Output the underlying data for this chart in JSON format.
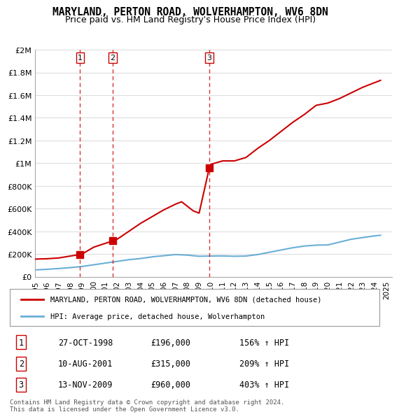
{
  "title": "MARYLAND, PERTON ROAD, WOLVERHAMPTON, WV6 8DN",
  "subtitle": "Price paid vs. HM Land Registry's House Price Index (HPI)",
  "legend_label1": "MARYLAND, PERTON ROAD, WOLVERHAMPTON, WV6 8DN (detached house)",
  "legend_label2": "HPI: Average price, detached house, Wolverhampton",
  "footnote": "Contains HM Land Registry data © Crown copyright and database right 2024.\nThis data is licensed under the Open Government Licence v3.0.",
  "sale_dates": [
    1998.83,
    2001.61,
    2009.87
  ],
  "sale_prices": [
    196000,
    315000,
    960000
  ],
  "sale_labels": [
    "1",
    "2",
    "3"
  ],
  "sale_info": [
    [
      "1",
      "27-OCT-1998",
      "£196,000",
      "156% ↑ HPI"
    ],
    [
      "2",
      "10-AUG-2001",
      "£315,000",
      "209% ↑ HPI"
    ],
    [
      "3",
      "13-NOV-2009",
      "£960,000",
      "403% ↑ HPI"
    ]
  ],
  "hpi_color": "#6baed6",
  "price_color": "#cc0000",
  "vline_color": "#cc0000",
  "xlim": [
    1995,
    2025.5
  ],
  "ylim": [
    0,
    2000000
  ],
  "yticks": [
    0,
    200000,
    400000,
    600000,
    800000,
    1000000,
    1200000,
    1400000,
    1600000,
    1800000,
    2000000
  ],
  "ytick_labels": [
    "£0",
    "£200K",
    "£400K",
    "£600K",
    "£800K",
    "£1M",
    "£1.2M",
    "£1.4M",
    "£1.6M",
    "£1.8M",
    "£2M"
  ],
  "xticks": [
    1995,
    1996,
    1997,
    1998,
    1999,
    2000,
    2001,
    2002,
    2003,
    2004,
    2005,
    2006,
    2007,
    2008,
    2009,
    2010,
    2011,
    2012,
    2013,
    2014,
    2015,
    2016,
    2017,
    2018,
    2019,
    2020,
    2021,
    2022,
    2023,
    2024,
    2025
  ],
  "red_line_x": [
    1995,
    1996,
    1997,
    1998.83,
    1999,
    2000,
    2001.61,
    2002,
    2003,
    2004,
    2005,
    2006,
    2007,
    2007.5,
    2008,
    2008.5,
    2009,
    2009.87,
    2010,
    2011,
    2012,
    2013,
    2014,
    2015,
    2016,
    2017,
    2018,
    2019,
    2020,
    2021,
    2022,
    2023,
    2024,
    2024.5
  ],
  "red_line_y": [
    155000,
    158000,
    165000,
    196000,
    200000,
    260000,
    315000,
    330000,
    400000,
    470000,
    530000,
    590000,
    640000,
    660000,
    620000,
    580000,
    560000,
    960000,
    990000,
    1020000,
    1020000,
    1050000,
    1130000,
    1200000,
    1280000,
    1360000,
    1430000,
    1510000,
    1530000,
    1570000,
    1620000,
    1670000,
    1710000,
    1730000
  ],
  "blue_line_x": [
    1995,
    1996,
    1997,
    1998,
    1999,
    2000,
    2001,
    2002,
    2003,
    2004,
    2005,
    2006,
    2007,
    2008,
    2009,
    2010,
    2011,
    2012,
    2013,
    2014,
    2015,
    2016,
    2017,
    2018,
    2019,
    2020,
    2021,
    2022,
    2023,
    2024,
    2024.5
  ],
  "blue_line_y": [
    60000,
    65000,
    72000,
    80000,
    90000,
    105000,
    120000,
    135000,
    150000,
    160000,
    175000,
    185000,
    195000,
    190000,
    180000,
    182000,
    183000,
    180000,
    182000,
    195000,
    215000,
    235000,
    255000,
    270000,
    278000,
    280000,
    305000,
    330000,
    345000,
    360000,
    365000
  ]
}
